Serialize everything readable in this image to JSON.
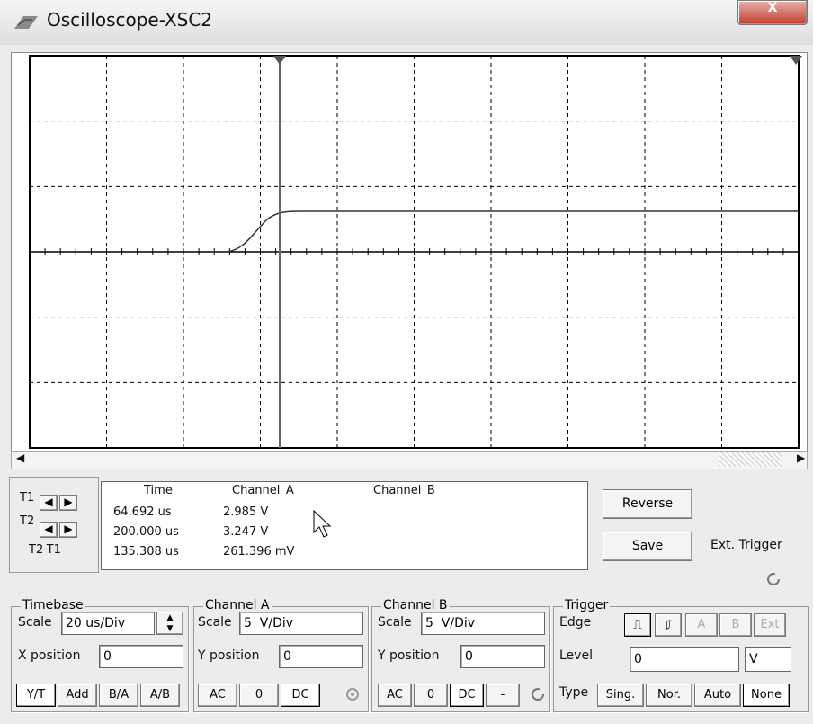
{
  "window": {
    "title": "Oscilloscope-XSC2",
    "close": "X"
  },
  "cursors": {
    "labels": [
      "T1",
      "T2",
      "T2-T1"
    ]
  },
  "readout": {
    "headers": [
      "Time",
      "Channel_A",
      "Channel_B"
    ],
    "rows": [
      [
        "64.692 us",
        "2.985 V"
      ],
      [
        "200.000 us",
        "3.247 V"
      ],
      [
        "135.308 us",
        "261.396 mV"
      ]
    ]
  },
  "buttons": {
    "reverse": "Reverse",
    "save": "Save",
    "ext_trigger": "Ext. Trigger"
  },
  "timebase": {
    "title": "Timebase",
    "scale_label": "Scale",
    "scale": "20 us/Div",
    "xpos_label": "X position",
    "xpos": "0",
    "modes": [
      "Y/T",
      "Add",
      "B/A",
      "A/B"
    ]
  },
  "channel_a": {
    "title": "Channel A",
    "scale_label": "Scale",
    "scale": "5  V/Div",
    "ypos_label": "Y position",
    "ypos": "0",
    "coupling": [
      "AC",
      "0",
      "DC"
    ]
  },
  "channel_b": {
    "title": "Channel B",
    "scale_label": "Scale",
    "scale": "5  V/Div",
    "ypos_label": "Y position",
    "ypos": "0",
    "coupling": [
      "AC",
      "0",
      "DC",
      "-"
    ]
  },
  "trigger": {
    "title": "Trigger",
    "edge_label": "Edge",
    "sources": [
      "A",
      "B",
      "Ext"
    ],
    "level_label": "Level",
    "level": "0",
    "level_unit": "V",
    "type_label": "Type",
    "types": [
      "Sing.",
      "Nor.",
      "Auto",
      "None"
    ]
  }
}
